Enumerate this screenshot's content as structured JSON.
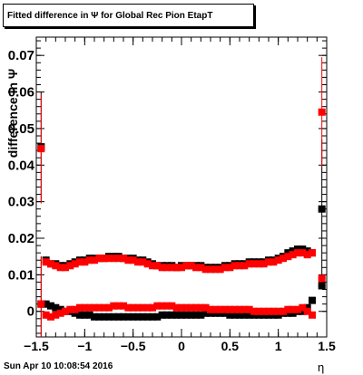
{
  "title": "Fitted difference in  Ψ  for Global Rec Pion EtapT",
  "ylabel": "difference in Ψ",
  "xlabel": "η",
  "footer": "Sun Apr 10 10:08:54 2016",
  "chart_data": {
    "type": "scatter",
    "xlim": [
      -1.5,
      1.5
    ],
    "ylim": [
      -0.007,
      0.075
    ],
    "x_ticks": [
      -1.5,
      -1,
      -0.5,
      0,
      0.5,
      1,
      1.5
    ],
    "x_tick_labels": [
      "−1.5",
      "−1",
      "−0.5",
      "0",
      "0.5",
      "1",
      "1.5"
    ],
    "y_ticks": [
      0,
      0.01,
      0.02,
      0.03,
      0.04,
      0.05,
      0.06,
      0.07
    ],
    "y_tick_labels": [
      "0",
      "0.01",
      "0.02",
      "0.03",
      "0.04",
      "0.05",
      "0.06",
      "0.07"
    ],
    "grid": false,
    "series": [
      {
        "color": "#000000",
        "marker": "square",
        "points": [
          [
            -1.45,
            0.045,
            0.015
          ],
          [
            -1.45,
            0.002,
            0.013
          ],
          [
            -1.4,
            0.014,
            0.001
          ],
          [
            -1.35,
            0.013,
            0.0005
          ],
          [
            -1.3,
            0.013,
            0.0005
          ],
          [
            -1.25,
            0.0125,
            0.0005
          ],
          [
            -1.2,
            0.0125,
            0.0005
          ],
          [
            -1.15,
            0.013,
            0.0005
          ],
          [
            -1.1,
            0.0135,
            0.0005
          ],
          [
            -1.05,
            0.014,
            0.0005
          ],
          [
            -1.0,
            0.014,
            0.0005
          ],
          [
            -0.95,
            0.0145,
            0.0005
          ],
          [
            -0.9,
            0.0145,
            0.0005
          ],
          [
            -0.85,
            0.0145,
            0.0005
          ],
          [
            -0.8,
            0.0145,
            0.0005
          ],
          [
            -0.75,
            0.015,
            0.0005
          ],
          [
            -0.7,
            0.015,
            0.0005
          ],
          [
            -0.65,
            0.015,
            0.0005
          ],
          [
            -0.6,
            0.0145,
            0.0005
          ],
          [
            -0.55,
            0.0145,
            0.0005
          ],
          [
            -0.5,
            0.0145,
            0.0005
          ],
          [
            -0.45,
            0.014,
            0.0005
          ],
          [
            -0.4,
            0.014,
            0.0005
          ],
          [
            -0.35,
            0.0135,
            0.0005
          ],
          [
            -0.3,
            0.013,
            0.0005
          ],
          [
            -0.25,
            0.0125,
            0.0005
          ],
          [
            -0.2,
            0.0125,
            0.0005
          ],
          [
            -0.15,
            0.0125,
            0.0005
          ],
          [
            -0.1,
            0.0125,
            0.0005
          ],
          [
            -0.05,
            0.012,
            0.0005
          ],
          [
            0.0,
            0.0125,
            0.0005
          ],
          [
            0.05,
            0.0125,
            0.0005
          ],
          [
            0.1,
            0.0125,
            0.0005
          ],
          [
            0.15,
            0.0125,
            0.0005
          ],
          [
            0.2,
            0.0125,
            0.0005
          ],
          [
            0.25,
            0.012,
            0.0005
          ],
          [
            0.3,
            0.012,
            0.0005
          ],
          [
            0.35,
            0.012,
            0.0005
          ],
          [
            0.4,
            0.012,
            0.0005
          ],
          [
            0.45,
            0.0125,
            0.0005
          ],
          [
            0.5,
            0.0125,
            0.0005
          ],
          [
            0.55,
            0.013,
            0.0005
          ],
          [
            0.6,
            0.013,
            0.0005
          ],
          [
            0.65,
            0.013,
            0.0005
          ],
          [
            0.7,
            0.0135,
            0.0005
          ],
          [
            0.75,
            0.0135,
            0.0005
          ],
          [
            0.8,
            0.0135,
            0.0005
          ],
          [
            0.85,
            0.0135,
            0.0005
          ],
          [
            0.9,
            0.014,
            0.0005
          ],
          [
            0.95,
            0.014,
            0.0005
          ],
          [
            1.0,
            0.0145,
            0.0005
          ],
          [
            1.05,
            0.015,
            0.0005
          ],
          [
            1.1,
            0.016,
            0.0005
          ],
          [
            1.15,
            0.0165,
            0.0005
          ],
          [
            1.2,
            0.017,
            0.0005
          ],
          [
            1.25,
            0.017,
            0.0005
          ],
          [
            1.3,
            0.0165,
            0.0005
          ],
          [
            1.35,
            0.016,
            0.0005
          ],
          [
            1.45,
            0.028,
            0.019
          ],
          [
            -1.4,
            0.002,
            0.001
          ],
          [
            -1.35,
            0.0015,
            0.0005
          ],
          [
            -1.3,
            0.001,
            0.0005
          ],
          [
            -1.25,
            0.0005,
            0.0005
          ],
          [
            -1.2,
            0.0,
            0.0005
          ],
          [
            -1.15,
            0.0,
            0.0005
          ],
          [
            -1.1,
            -0.0005,
            0.0005
          ],
          [
            -1.05,
            -0.001,
            0.0005
          ],
          [
            -1.0,
            -0.001,
            0.0005
          ],
          [
            -0.95,
            -0.001,
            0.0005
          ],
          [
            -0.9,
            -0.0015,
            0.0005
          ],
          [
            -0.85,
            -0.0015,
            0.0005
          ],
          [
            -0.8,
            -0.0015,
            0.0005
          ],
          [
            -0.75,
            -0.0015,
            0.0005
          ],
          [
            -0.7,
            -0.0015,
            0.0005
          ],
          [
            -0.65,
            -0.0015,
            0.0005
          ],
          [
            -0.6,
            -0.0015,
            0.0005
          ],
          [
            -0.55,
            -0.0015,
            0.0005
          ],
          [
            -0.5,
            -0.0015,
            0.0005
          ],
          [
            -0.45,
            -0.0015,
            0.0005
          ],
          [
            -0.4,
            -0.0015,
            0.0005
          ],
          [
            -0.35,
            -0.0015,
            0.0005
          ],
          [
            -0.3,
            -0.0015,
            0.0005
          ],
          [
            -0.25,
            -0.0015,
            0.0005
          ],
          [
            -0.2,
            -0.001,
            0.0005
          ],
          [
            -0.15,
            -0.001,
            0.0005
          ],
          [
            -0.1,
            -0.001,
            0.0005
          ],
          [
            -0.05,
            -0.001,
            0.0005
          ],
          [
            0.0,
            -0.001,
            0.0005
          ],
          [
            0.05,
            -0.001,
            0.0005
          ],
          [
            0.1,
            -0.001,
            0.0005
          ],
          [
            0.15,
            -0.001,
            0.0005
          ],
          [
            0.2,
            -0.001,
            0.0005
          ],
          [
            0.25,
            -0.0005,
            0.0005
          ],
          [
            0.3,
            -0.0005,
            0.0005
          ],
          [
            0.35,
            -0.0005,
            0.0005
          ],
          [
            0.4,
            -0.0005,
            0.0005
          ],
          [
            0.45,
            -0.0005,
            0.0005
          ],
          [
            0.5,
            -0.001,
            0.0005
          ],
          [
            0.55,
            -0.001,
            0.0005
          ],
          [
            0.6,
            -0.001,
            0.0005
          ],
          [
            0.65,
            -0.001,
            0.0005
          ],
          [
            0.7,
            -0.001,
            0.0005
          ],
          [
            0.75,
            -0.001,
            0.0005
          ],
          [
            0.8,
            -0.001,
            0.0005
          ],
          [
            0.85,
            -0.001,
            0.0005
          ],
          [
            0.9,
            -0.001,
            0.0005
          ],
          [
            0.95,
            -0.001,
            0.0005
          ],
          [
            1.0,
            -0.001,
            0.0005
          ],
          [
            1.05,
            -0.0005,
            0.0005
          ],
          [
            1.1,
            -0.0005,
            0.0005
          ],
          [
            1.15,
            -0.0005,
            0.0005
          ],
          [
            1.2,
            0.0,
            0.0005
          ],
          [
            1.25,
            0.0,
            0.0005
          ],
          [
            1.3,
            0.001,
            0.0005
          ],
          [
            1.35,
            0.003,
            0.0005
          ],
          [
            1.45,
            0.007,
            0.001
          ]
        ]
      },
      {
        "color": "#ff0000",
        "marker": "square",
        "points": [
          [
            -1.45,
            0.0445,
            0.015
          ],
          [
            -1.45,
            0.002,
            0.013
          ],
          [
            -1.4,
            0.0135,
            0.001
          ],
          [
            -1.35,
            0.013,
            0.0005
          ],
          [
            -1.3,
            0.0125,
            0.0005
          ],
          [
            -1.25,
            0.012,
            0.0005
          ],
          [
            -1.2,
            0.012,
            0.0005
          ],
          [
            -1.15,
            0.0125,
            0.0005
          ],
          [
            -1.1,
            0.013,
            0.0005
          ],
          [
            -1.05,
            0.0135,
            0.0005
          ],
          [
            -1.0,
            0.0135,
            0.0005
          ],
          [
            -0.95,
            0.014,
            0.0005
          ],
          [
            -0.9,
            0.014,
            0.0005
          ],
          [
            -0.85,
            0.0145,
            0.0005
          ],
          [
            -0.8,
            0.0145,
            0.0005
          ],
          [
            -0.75,
            0.0145,
            0.0005
          ],
          [
            -0.7,
            0.0145,
            0.0005
          ],
          [
            -0.65,
            0.0145,
            0.0005
          ],
          [
            -0.6,
            0.0145,
            0.0005
          ],
          [
            -0.55,
            0.014,
            0.0005
          ],
          [
            -0.5,
            0.014,
            0.0005
          ],
          [
            -0.45,
            0.0135,
            0.0005
          ],
          [
            -0.4,
            0.0135,
            0.0005
          ],
          [
            -0.35,
            0.013,
            0.0005
          ],
          [
            -0.3,
            0.0125,
            0.0005
          ],
          [
            -0.25,
            0.0125,
            0.0005
          ],
          [
            -0.2,
            0.012,
            0.0005
          ],
          [
            -0.15,
            0.012,
            0.0005
          ],
          [
            -0.1,
            0.012,
            0.0005
          ],
          [
            -0.05,
            0.012,
            0.0005
          ],
          [
            0.0,
            0.012,
            0.0005
          ],
          [
            0.05,
            0.0125,
            0.0005
          ],
          [
            0.1,
            0.0125,
            0.0005
          ],
          [
            0.15,
            0.012,
            0.0005
          ],
          [
            0.2,
            0.012,
            0.0005
          ],
          [
            0.25,
            0.0115,
            0.0005
          ],
          [
            0.3,
            0.0115,
            0.0005
          ],
          [
            0.35,
            0.0115,
            0.0005
          ],
          [
            0.4,
            0.0115,
            0.0005
          ],
          [
            0.45,
            0.012,
            0.0005
          ],
          [
            0.5,
            0.012,
            0.0005
          ],
          [
            0.55,
            0.0125,
            0.0005
          ],
          [
            0.6,
            0.0125,
            0.0005
          ],
          [
            0.65,
            0.0125,
            0.0005
          ],
          [
            0.7,
            0.013,
            0.0005
          ],
          [
            0.75,
            0.013,
            0.0005
          ],
          [
            0.8,
            0.013,
            0.0005
          ],
          [
            0.85,
            0.013,
            0.0005
          ],
          [
            0.9,
            0.0135,
            0.0005
          ],
          [
            0.95,
            0.0135,
            0.0005
          ],
          [
            1.0,
            0.014,
            0.0005
          ],
          [
            1.05,
            0.0145,
            0.0005
          ],
          [
            1.1,
            0.015,
            0.0005
          ],
          [
            1.15,
            0.0155,
            0.0005
          ],
          [
            1.2,
            0.016,
            0.0005
          ],
          [
            1.25,
            0.016,
            0.0005
          ],
          [
            1.3,
            0.0155,
            0.0005
          ],
          [
            1.35,
            0.016,
            0.0005
          ],
          [
            1.45,
            0.0545,
            0.015
          ],
          [
            -1.4,
            -0.001,
            0.001
          ],
          [
            -1.35,
            -0.0015,
            0.0005
          ],
          [
            -1.3,
            -0.001,
            0.0005
          ],
          [
            -1.25,
            -0.0005,
            0.0005
          ],
          [
            -1.2,
            0.0,
            0.0005
          ],
          [
            -1.15,
            0.0005,
            0.0005
          ],
          [
            -1.1,
            0.0005,
            0.0005
          ],
          [
            -1.05,
            0.001,
            0.0005
          ],
          [
            -1.0,
            0.001,
            0.0005
          ],
          [
            -0.95,
            0.001,
            0.0005
          ],
          [
            -0.9,
            0.001,
            0.0005
          ],
          [
            -0.85,
            0.001,
            0.0005
          ],
          [
            -0.8,
            0.001,
            0.0005
          ],
          [
            -0.75,
            0.001,
            0.0005
          ],
          [
            -0.7,
            0.0015,
            0.0005
          ],
          [
            -0.65,
            0.0015,
            0.0005
          ],
          [
            -0.6,
            0.0015,
            0.0005
          ],
          [
            -0.55,
            0.001,
            0.0005
          ],
          [
            -0.5,
            0.001,
            0.0005
          ],
          [
            -0.45,
            0.001,
            0.0005
          ],
          [
            -0.4,
            0.001,
            0.0005
          ],
          [
            -0.35,
            0.001,
            0.0005
          ],
          [
            -0.3,
            0.001,
            0.0005
          ],
          [
            -0.25,
            0.0015,
            0.0005
          ],
          [
            -0.2,
            0.0015,
            0.0005
          ],
          [
            -0.15,
            0.0015,
            0.0005
          ],
          [
            -0.1,
            0.0015,
            0.0005
          ],
          [
            -0.05,
            0.001,
            0.0005
          ],
          [
            0.0,
            0.001,
            0.0005
          ],
          [
            0.05,
            0.001,
            0.0005
          ],
          [
            0.1,
            0.001,
            0.0005
          ],
          [
            0.15,
            0.001,
            0.0005
          ],
          [
            0.2,
            0.001,
            0.0005
          ],
          [
            0.25,
            0.001,
            0.0005
          ],
          [
            0.3,
            0.0005,
            0.0005
          ],
          [
            0.35,
            0.0005,
            0.0005
          ],
          [
            0.4,
            0.0005,
            0.0005
          ],
          [
            0.45,
            0.0005,
            0.0005
          ],
          [
            0.5,
            0.0005,
            0.0005
          ],
          [
            0.55,
            0.0005,
            0.0005
          ],
          [
            0.6,
            0.0005,
            0.0005
          ],
          [
            0.65,
            0.0005,
            0.0005
          ],
          [
            0.7,
            0.0005,
            0.0005
          ],
          [
            0.75,
            0.0,
            0.0005
          ],
          [
            0.8,
            0.0,
            0.0005
          ],
          [
            0.85,
            0.0,
            0.0005
          ],
          [
            0.9,
            0.0,
            0.0005
          ],
          [
            0.95,
            0.0,
            0.0005
          ],
          [
            1.0,
            0.0,
            0.0005
          ],
          [
            1.05,
            0.0,
            0.0005
          ],
          [
            1.1,
            0.0005,
            0.0005
          ],
          [
            1.15,
            0.0005,
            0.0005
          ],
          [
            1.2,
            0.0005,
            0.0005
          ],
          [
            1.25,
            0.001,
            0.0005
          ],
          [
            1.3,
            0.0,
            0.0005
          ],
          [
            1.35,
            -0.001,
            0.0005
          ],
          [
            1.45,
            0.009,
            0.001
          ]
        ]
      }
    ]
  }
}
